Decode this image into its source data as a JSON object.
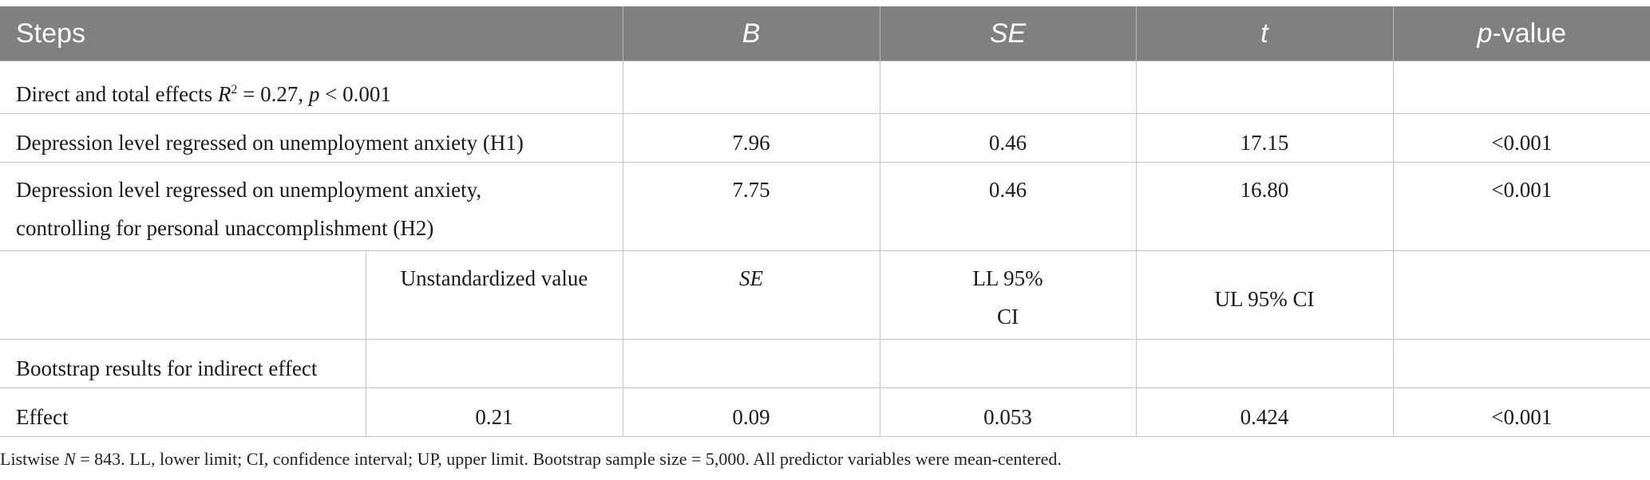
{
  "header": {
    "steps": "Steps",
    "b": "B",
    "se": "SE",
    "t": "t",
    "p_prefix": "p",
    "p_suffix": "-value"
  },
  "rows": {
    "direct_total": {
      "label_a": "Direct and total effects ",
      "r": "R",
      "sup": "2",
      "label_b": " = 0.27, ",
      "p": "p",
      "label_c": " < 0.001"
    },
    "h1": {
      "label": "Depression level regressed on unemployment anxiety (H1)",
      "b": "7.96",
      "se": "0.46",
      "t": "17.15",
      "p": "<0.001"
    },
    "h2": {
      "label_line1": "Depression level regressed on unemployment anxiety,",
      "label_line2": "controlling for personal unaccomplishment (H2)",
      "b": "7.75",
      "se": "0.46",
      "t": "16.80",
      "p": "<0.001"
    },
    "subheader": {
      "unstd": "Unstandardized value",
      "se": "SE",
      "ll_line1": "LL 95%",
      "ll_line2": "CI",
      "ul": "UL 95% CI"
    },
    "bootstrap": {
      "label": "Bootstrap results for indirect effect"
    },
    "effect": {
      "label": "Effect",
      "unstd": "0.21",
      "se": "0.09",
      "ll": "0.053",
      "ul": "0.424",
      "p": "<0.001"
    }
  },
  "note": {
    "a": "Listwise ",
    "n": "N",
    "b": " = 843. LL, lower limit; CI, confidence interval; UP, upper limit. Bootstrap sample size = 5,000. All predictor variables were mean-centered."
  }
}
